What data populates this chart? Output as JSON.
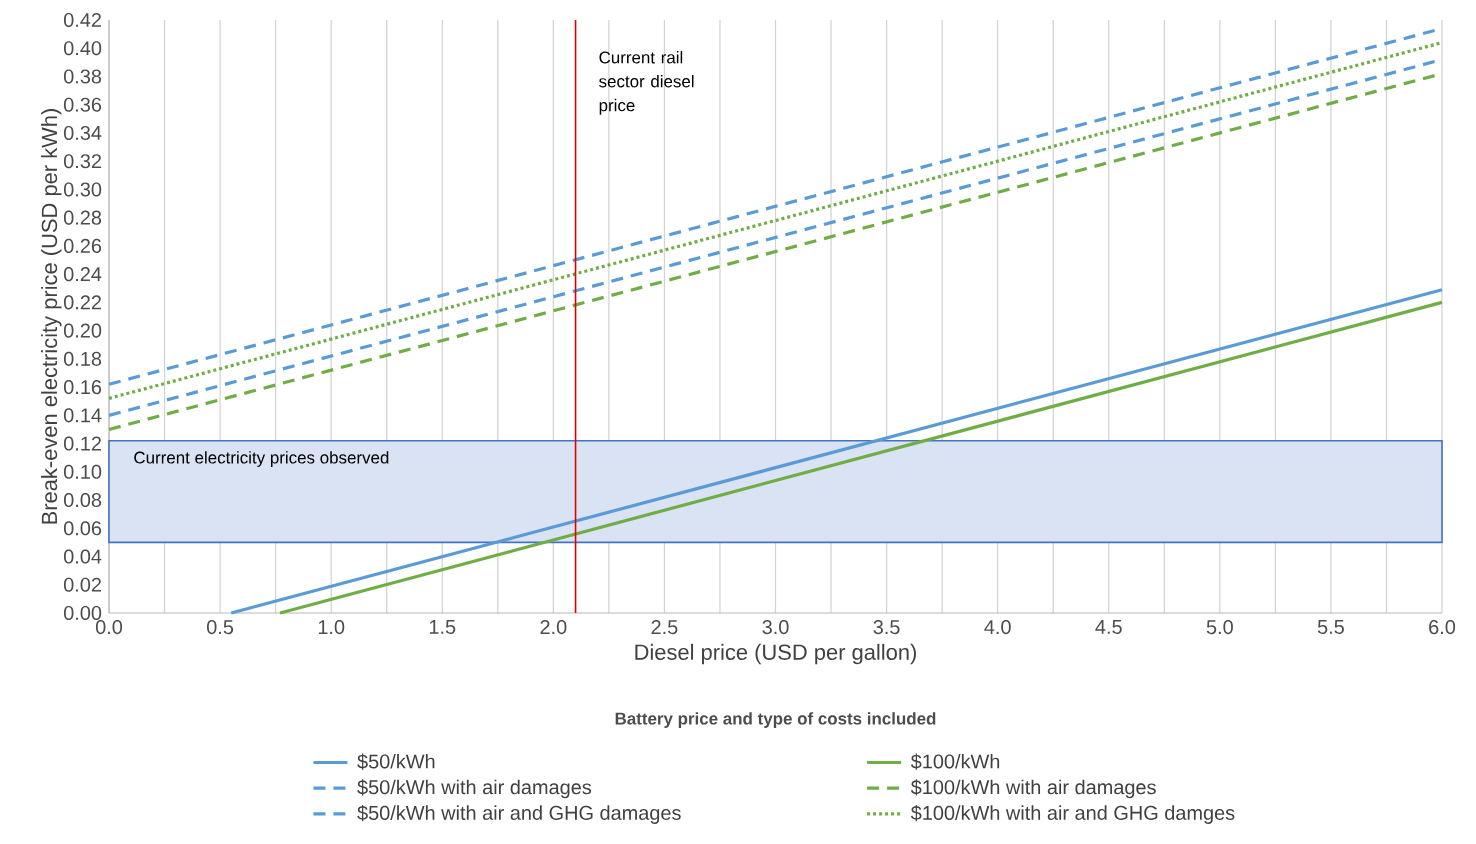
{
  "chart_data": {
    "type": "line",
    "xlabel": "Diesel price (USD per gallon)",
    "ylabel": "Break-even electricity price (USD per kWh)",
    "legend_title": "Battery price and type of costs included",
    "series": [
      {
        "name": "$50/kWh",
        "color": "#5b9bd5",
        "line_style": "solid",
        "x": [
          0.55,
          6.0
        ],
        "values": [
          0.0,
          0.229
        ]
      },
      {
        "name": "$100/kWh",
        "color": "#70ad47",
        "line_style": "solid",
        "x": [
          0.77,
          6.0
        ],
        "values": [
          0.0,
          0.22
        ]
      },
      {
        "name": "$50/kWh with air damages",
        "color": "#5b9bd5",
        "line_style": "dashed",
        "x": [
          0.0,
          6.0
        ],
        "values": [
          0.14,
          0.392
        ]
      },
      {
        "name": "$100/kWh with air damages",
        "color": "#70ad47",
        "line_style": "dashed",
        "x": [
          0.0,
          6.0
        ],
        "values": [
          0.13,
          0.382
        ]
      },
      {
        "name": "$50/kWh with air and GHG damages",
        "color": "#5b9bd5",
        "line_style": "dashed",
        "x": [
          0.0,
          6.0
        ],
        "values": [
          0.162,
          0.414
        ]
      },
      {
        "name": "$100/kWh with air and GHG damges",
        "color": "#70ad47",
        "line_style": "dotted",
        "x": [
          0.0,
          6.0
        ],
        "values": [
          0.152,
          0.404
        ]
      }
    ],
    "xlim": [
      0,
      6
    ],
    "ylim": [
      0,
      0.42
    ],
    "xticks": [
      {
        "value": 0,
        "label": "0.0"
      },
      0.5,
      {
        "value": 1,
        "label": "1.0"
      },
      1.5,
      {
        "value": 2,
        "label": "2.0"
      },
      2.5,
      {
        "value": 3,
        "label": "3.0"
      },
      3.5,
      {
        "value": 4,
        "label": "4.0"
      },
      4.5,
      {
        "value": 5,
        "label": "5.0"
      },
      5.5,
      {
        "value": 6,
        "label": "6.0"
      }
    ],
    "yticks": [
      {
        "value": 0,
        "label": "0.00"
      },
      0.02,
      0.04,
      0.06,
      0.08,
      {
        "value": 0.1,
        "label": "0.10"
      },
      0.12,
      0.14,
      0.16,
      0.18,
      {
        "value": 0.2,
        "label": "0.20"
      },
      0.22,
      0.24,
      0.26,
      0.28,
      {
        "value": 0.3,
        "label": "0.30"
      },
      0.32,
      0.34,
      0.36,
      0.38,
      {
        "value": 0.4,
        "label": "0.40"
      },
      0.42
    ],
    "ref_lines": [
      {
        "axis": "x",
        "value": 2.1,
        "label": "Current rail sector diesel price",
        "color": "#e00000"
      }
    ],
    "bands": [
      {
        "axis": "y",
        "from": 0.05,
        "to": 0.122,
        "label": "Current electricity prices observed",
        "color": "#dae3f3"
      }
    ],
    "grid": "x",
    "legend": "bottom"
  }
}
